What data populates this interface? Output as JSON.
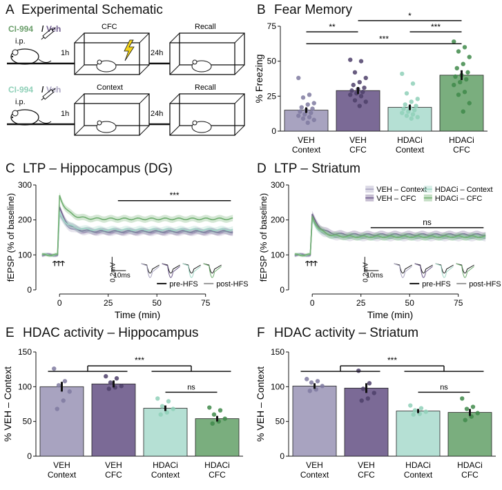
{
  "panels": {
    "A": {
      "letter": "A",
      "title": "Experimental Schematic"
    },
    "B": {
      "letter": "B",
      "title": "Fear Memory"
    },
    "C": {
      "letter": "C",
      "title": "LTP – Hippocampus (DG)"
    },
    "D": {
      "letter": "D",
      "title": "LTP – Striatum"
    },
    "E": {
      "letter": "E",
      "title": "HDAC activity – Hippocampus"
    },
    "F": {
      "letter": "F",
      "title": "HDAC activity – Striatum"
    }
  },
  "schematic": {
    "drug_a": "CI-994",
    "slash": "/",
    "veh": "Veh",
    "ip": "i.p.",
    "row1_box1": "CFC",
    "row1_box2": "Recall",
    "row2_box1": "Context",
    "row2_box2": "Recall",
    "t1": "1h",
    "t2": "24h",
    "colors": {
      "drug_dark": "#6a9e6a",
      "drug_light": "#8fd0b8",
      "veh": "#6e5b8c",
      "lightning": "#f2d21b"
    }
  },
  "chart_data": [
    {
      "id": "B",
      "type": "bar",
      "categories": [
        "VEH\nContext",
        "VEH\nCFC",
        "HDACi\nContext",
        "HDACi\nCFC"
      ],
      "values": [
        15,
        29,
        17,
        40
      ],
      "errors": [
        2,
        2.5,
        2,
        3.5
      ],
      "points": [
        [
          38,
          26,
          24,
          20,
          19,
          17,
          16,
          15,
          14,
          13,
          12,
          11,
          10,
          9,
          8,
          6
        ],
        [
          51,
          50,
          42,
          38,
          35,
          33,
          31,
          30,
          29,
          28,
          27,
          26,
          25,
          22,
          21,
          18
        ],
        [
          41,
          34,
          27,
          23,
          21,
          19,
          18,
          17,
          16,
          15,
          14,
          13,
          12,
          11,
          10,
          9
        ],
        [
          64,
          60,
          57,
          53,
          48,
          45,
          42,
          40,
          39,
          37,
          35,
          33,
          28,
          26,
          20,
          14
        ]
      ],
      "ylabel": "% Freezing",
      "ylim": [
        0,
        75
      ],
      "yticks": [
        0,
        25,
        50,
        75
      ],
      "significance": [
        {
          "from": 0,
          "to": 1,
          "label": "**"
        },
        {
          "from": 0,
          "to": 3,
          "label": "***"
        },
        {
          "from": 2,
          "to": 3,
          "label": "***"
        },
        {
          "from": 1,
          "to": 3,
          "label": "*"
        }
      ],
      "colors": [
        "#a8a3c0",
        "#7b6a96",
        "#b5e0d4",
        "#7aae7e"
      ]
    },
    {
      "id": "C",
      "type": "line",
      "ylabel": "fEPSP (% of baseline)",
      "xlabel": "Time (min)",
      "xlim": [
        -10,
        90
      ],
      "xticks": [
        0,
        25,
        50,
        75
      ],
      "ylim": [
        0,
        300
      ],
      "yticks": [
        0,
        100,
        200,
        300
      ],
      "series": [
        {
          "key": "veh_ctx",
          "peak": 215,
          "plateau": 165,
          "color": "#a8a3c0"
        },
        {
          "key": "veh_cfc",
          "peak": 235,
          "plateau": 167,
          "color": "#6e5b8c"
        },
        {
          "key": "hdac_ctx",
          "peak": 220,
          "plateau": 172,
          "color": "#9fd8c6"
        },
        {
          "key": "hdac_cfc",
          "peak": 270,
          "plateau": 203,
          "color": "#6fae6f"
        }
      ],
      "sig_label": "***",
      "sig_range": [
        30,
        88
      ],
      "sig_y": 255,
      "legend": {
        "pre": "pre-HFS",
        "post": "post-HFS"
      },
      "scale": {
        "v": "0.2mV",
        "t": "10ms"
      }
    },
    {
      "id": "D",
      "type": "line",
      "ylabel": "fEPSP (% of baseline)",
      "xlabel": "Time (min)",
      "xlim": [
        -10,
        90
      ],
      "xticks": [
        0,
        25,
        50,
        75
      ],
      "ylim": [
        0,
        300
      ],
      "yticks": [
        0,
        100,
        200,
        300
      ],
      "series": [
        {
          "key": "veh_ctx",
          "name": "VEH – Context",
          "peak": 205,
          "plateau": 150,
          "color": "#a8a3c0"
        },
        {
          "key": "veh_cfc",
          "name": "VEH – CFC",
          "peak": 215,
          "plateau": 158,
          "color": "#6e5b8c"
        },
        {
          "key": "hdac_ctx",
          "name": "HDACi – Context",
          "peak": 200,
          "plateau": 152,
          "color": "#9fd8c6"
        },
        {
          "key": "hdac_cfc",
          "name": "HDACi – CFC",
          "peak": 210,
          "plateau": 152,
          "color": "#6fae6f"
        }
      ],
      "sig_label": "ns",
      "sig_range": [
        30,
        88
      ],
      "sig_y": 178,
      "legend": {
        "pre": "pre-HFS",
        "post": "post-HFS"
      },
      "scale": {
        "v": "0.2mV",
        "t": "10ms"
      }
    },
    {
      "id": "E",
      "type": "bar",
      "categories": [
        "VEH\nContext",
        "VEH\nCFC",
        "HDACi\nContext",
        "HDACi\nCFC"
      ],
      "values": [
        100,
        104,
        69,
        54
      ],
      "errors": [
        7,
        5,
        4,
        4
      ],
      "points": [
        [
          126,
          108,
          102,
          93,
          80,
          68
        ],
        [
          115,
          112,
          106,
          101,
          99,
          97
        ],
        [
          83,
          79,
          72,
          68,
          63,
          60
        ],
        [
          70,
          66,
          60,
          54,
          50,
          47
        ]
      ],
      "ylabel": "% VEH – Context",
      "ylim": [
        0,
        150
      ],
      "yticks": [
        0,
        50,
        100,
        150
      ],
      "group_sig": "***",
      "pair_sig": "ns",
      "colors": [
        "#a8a3c0",
        "#7b6a96",
        "#b5e0d4",
        "#7aae7e"
      ]
    },
    {
      "id": "F",
      "type": "bar",
      "categories": [
        "VEH\nContext",
        "VEH\nCFC",
        "HDACi\nContext",
        "HDACi\nCFC"
      ],
      "values": [
        101,
        98,
        65,
        63
      ],
      "errors": [
        4,
        7,
        3,
        5
      ],
      "points": [
        [
          111,
          108,
          106,
          101,
          96,
          94
        ],
        [
          123,
          105,
          97,
          91,
          83,
          80
        ],
        [
          73,
          69,
          66,
          64,
          61,
          60
        ],
        [
          83,
          71,
          68,
          62,
          57,
          52
        ]
      ],
      "ylabel": "% VEH – Context",
      "ylim": [
        0,
        150
      ],
      "yticks": [
        0,
        50,
        100,
        150
      ],
      "group_sig": "***",
      "pair_sig": "ns",
      "colors": [
        "#a8a3c0",
        "#7b6a96",
        "#b5e0d4",
        "#7aae7e"
      ]
    }
  ]
}
